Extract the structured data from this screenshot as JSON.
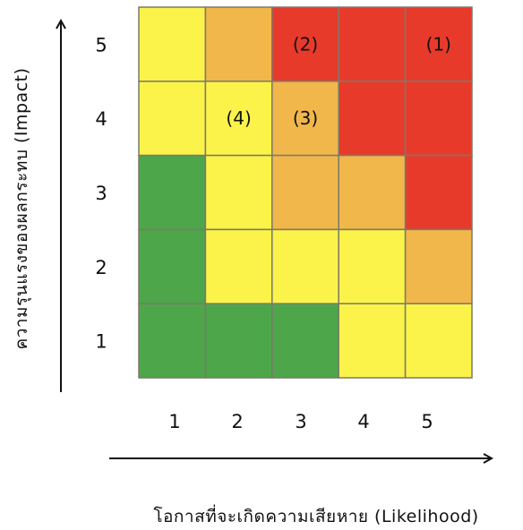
{
  "matrix": {
    "colors": {
      "green": "#4ea64a",
      "yellow": "#fbf34a",
      "orange": "#f1b74b",
      "red": "#e83a2a",
      "border": "#7a7a6a"
    },
    "rows": [
      {
        "impact": 5,
        "cells": [
          {
            "likelihood": 1,
            "level": "yellow",
            "label": ""
          },
          {
            "likelihood": 2,
            "level": "orange",
            "label": ""
          },
          {
            "likelihood": 3,
            "level": "red",
            "label": "(2)"
          },
          {
            "likelihood": 4,
            "level": "red",
            "label": ""
          },
          {
            "likelihood": 5,
            "level": "red",
            "label": "(1)"
          }
        ]
      },
      {
        "impact": 4,
        "cells": [
          {
            "likelihood": 1,
            "level": "yellow",
            "label": ""
          },
          {
            "likelihood": 2,
            "level": "yellow",
            "label": "(4)"
          },
          {
            "likelihood": 3,
            "level": "orange",
            "label": "(3)"
          },
          {
            "likelihood": 4,
            "level": "red",
            "label": ""
          },
          {
            "likelihood": 5,
            "level": "red",
            "label": ""
          }
        ]
      },
      {
        "impact": 3,
        "cells": [
          {
            "likelihood": 1,
            "level": "green",
            "label": ""
          },
          {
            "likelihood": 2,
            "level": "yellow",
            "label": ""
          },
          {
            "likelihood": 3,
            "level": "orange",
            "label": ""
          },
          {
            "likelihood": 4,
            "level": "orange",
            "label": ""
          },
          {
            "likelihood": 5,
            "level": "red",
            "label": ""
          }
        ]
      },
      {
        "impact": 2,
        "cells": [
          {
            "likelihood": 1,
            "level": "green",
            "label": ""
          },
          {
            "likelihood": 2,
            "level": "yellow",
            "label": ""
          },
          {
            "likelihood": 3,
            "level": "yellow",
            "label": ""
          },
          {
            "likelihood": 4,
            "level": "yellow",
            "label": ""
          },
          {
            "likelihood": 5,
            "level": "orange",
            "label": ""
          }
        ]
      },
      {
        "impact": 1,
        "cells": [
          {
            "likelihood": 1,
            "level": "green",
            "label": ""
          },
          {
            "likelihood": 2,
            "level": "green",
            "label": ""
          },
          {
            "likelihood": 3,
            "level": "green",
            "label": ""
          },
          {
            "likelihood": 4,
            "level": "yellow",
            "label": ""
          },
          {
            "likelihood": 5,
            "level": "yellow",
            "label": ""
          }
        ]
      }
    ],
    "x_ticks": [
      "1",
      "2",
      "3",
      "4",
      "5"
    ],
    "y_ticks": [
      "5",
      "4",
      "3",
      "2",
      "1"
    ],
    "x_title": "โอกาสที่จะเกิดความเสียหาย (Likelihood)",
    "y_title": "ความรุนแรงของผลกระทบ (Impact)"
  }
}
